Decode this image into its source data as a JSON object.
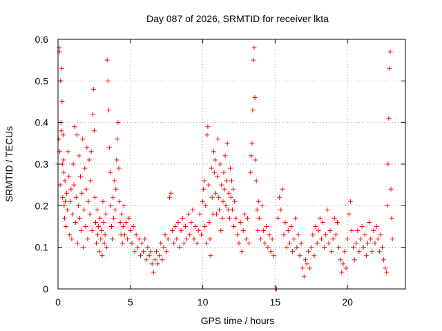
{
  "chart_data": {
    "type": "scatter",
    "title": "Day 087 of 2026, SRMTID for receiver lkta",
    "xlabel": "GPS time / hours",
    "ylabel": "SRMTID / TECUs",
    "xlim": [
      0,
      24
    ],
    "ylim": [
      0,
      0.6
    ],
    "x_ticks": [
      0,
      5,
      10,
      15,
      20
    ],
    "x_tick_labels": [
      "0",
      "5",
      "10",
      "15",
      "20"
    ],
    "y_ticks": [
      0,
      0.1,
      0.2,
      0.3,
      0.4,
      0.5,
      0.6
    ],
    "y_tick_labels": [
      "0",
      "0.1",
      "0.2",
      "0.3",
      "0.4",
      "0.5",
      "0.6"
    ],
    "grid": true,
    "marker": "+",
    "series_color": "#ff0000",
    "series": [
      {
        "name": "SRMTID",
        "points": [
          [
            0.0,
            0.3
          ],
          [
            0.05,
            0.36
          ],
          [
            0.08,
            0.58
          ],
          [
            0.1,
            0.57
          ],
          [
            0.12,
            0.33
          ],
          [
            0.15,
            0.25
          ],
          [
            0.18,
            0.5
          ],
          [
            0.2,
            0.4
          ],
          [
            0.22,
            0.38
          ],
          [
            0.25,
            0.53
          ],
          [
            0.28,
            0.45
          ],
          [
            0.3,
            0.3
          ],
          [
            0.32,
            0.22
          ],
          [
            0.35,
            0.37
          ],
          [
            0.38,
            0.31
          ],
          [
            0.4,
            0.28
          ],
          [
            0.42,
            0.2
          ],
          [
            0.45,
            0.17
          ],
          [
            0.48,
            0.26
          ],
          [
            0.5,
            0.21
          ],
          [
            0.55,
            0.15
          ],
          [
            0.6,
            0.23
          ],
          [
            0.65,
            0.19
          ],
          [
            0.7,
            0.33
          ],
          [
            0.75,
            0.27
          ],
          [
            0.8,
            0.13
          ],
          [
            0.85,
            0.21
          ],
          [
            0.9,
            0.24
          ],
          [
            0.95,
            0.12
          ],
          [
            1.0,
            0.18
          ],
          [
            1.05,
            0.3
          ],
          [
            1.1,
            0.25
          ],
          [
            1.15,
            0.39
          ],
          [
            1.2,
            0.16
          ],
          [
            1.25,
            0.22
          ],
          [
            1.3,
            0.37
          ],
          [
            1.35,
            0.11
          ],
          [
            1.4,
            0.2
          ],
          [
            1.45,
            0.32
          ],
          [
            1.5,
            0.17
          ],
          [
            1.55,
            0.27
          ],
          [
            1.6,
            0.14
          ],
          [
            1.65,
            0.23
          ],
          [
            1.7,
            0.36
          ],
          [
            1.75,
            0.1
          ],
          [
            1.8,
            0.19
          ],
          [
            1.85,
            0.29
          ],
          [
            1.9,
            0.15
          ],
          [
            1.95,
            0.24
          ],
          [
            2.0,
            0.34
          ],
          [
            2.05,
            0.12
          ],
          [
            2.1,
            0.21
          ],
          [
            2.15,
            0.31
          ],
          [
            2.2,
            0.18
          ],
          [
            2.25,
            0.26
          ],
          [
            2.3,
            0.33
          ],
          [
            2.35,
            0.14
          ],
          [
            2.4,
            0.42
          ],
          [
            2.45,
            0.48
          ],
          [
            2.5,
            0.38
          ],
          [
            2.55,
            0.22
          ],
          [
            2.6,
            0.16
          ],
          [
            2.65,
            0.11
          ],
          [
            2.7,
            0.19
          ],
          [
            2.75,
            0.13
          ],
          [
            2.8,
            0.15
          ],
          [
            2.85,
            0.09
          ],
          [
            2.9,
            0.17
          ],
          [
            2.95,
            0.12
          ],
          [
            3.0,
            0.14
          ],
          [
            3.05,
            0.08
          ],
          [
            3.1,
            0.21
          ],
          [
            3.15,
            0.16
          ],
          [
            3.2,
            0.11
          ],
          [
            3.25,
            0.13
          ],
          [
            3.3,
            0.18
          ],
          [
            3.35,
            0.1
          ],
          [
            3.4,
            0.55
          ],
          [
            3.45,
            0.5
          ],
          [
            3.5,
            0.43
          ],
          [
            3.55,
            0.34
          ],
          [
            3.6,
            0.28
          ],
          [
            3.65,
            0.2
          ],
          [
            3.7,
            0.15
          ],
          [
            3.75,
            0.12
          ],
          [
            3.8,
            0.22
          ],
          [
            3.85,
            0.17
          ],
          [
            3.9,
            0.26
          ],
          [
            3.95,
            0.19
          ],
          [
            4.0,
            0.24
          ],
          [
            4.05,
            0.31
          ],
          [
            4.1,
            0.36
          ],
          [
            4.15,
            0.4
          ],
          [
            4.2,
            0.29
          ],
          [
            4.25,
            0.21
          ],
          [
            4.3,
            0.16
          ],
          [
            4.35,
            0.13
          ],
          [
            4.4,
            0.18
          ],
          [
            4.45,
            0.11
          ],
          [
            4.5,
            0.15
          ],
          [
            4.55,
            0.2
          ],
          [
            4.6,
            0.13
          ],
          [
            4.7,
            0.16
          ],
          [
            4.8,
            0.12
          ],
          [
            4.9,
            0.17
          ],
          [
            5.0,
            0.14
          ],
          [
            5.1,
            0.11
          ],
          [
            5.2,
            0.15
          ],
          [
            5.3,
            0.09
          ],
          [
            5.4,
            0.13
          ],
          [
            5.5,
            0.1
          ],
          [
            5.6,
            0.12
          ],
          [
            5.7,
            0.08
          ],
          [
            5.8,
            0.11
          ],
          [
            5.9,
            0.09
          ],
          [
            6.0,
            0.12
          ],
          [
            6.1,
            0.07
          ],
          [
            6.2,
            0.1
          ],
          [
            6.3,
            0.08
          ],
          [
            6.4,
            0.09
          ],
          [
            6.5,
            0.06
          ],
          [
            6.6,
            0.04
          ],
          [
            6.7,
            0.07
          ],
          [
            6.8,
            0.09
          ],
          [
            6.9,
            0.06
          ],
          [
            7.0,
            0.08
          ],
          [
            7.1,
            0.11
          ],
          [
            7.2,
            0.07
          ],
          [
            7.3,
            0.1
          ],
          [
            7.4,
            0.13
          ],
          [
            7.5,
            0.09
          ],
          [
            7.6,
            0.12
          ],
          [
            7.7,
            0.22
          ],
          [
            7.8,
            0.23
          ],
          [
            7.9,
            0.14
          ],
          [
            8.0,
            0.11
          ],
          [
            8.1,
            0.15
          ],
          [
            8.2,
            0.12
          ],
          [
            8.3,
            0.16
          ],
          [
            8.4,
            0.1
          ],
          [
            8.5,
            0.14
          ],
          [
            8.6,
            0.17
          ],
          [
            8.7,
            0.11
          ],
          [
            8.8,
            0.15
          ],
          [
            8.9,
            0.12
          ],
          [
            9.0,
            0.18
          ],
          [
            9.1,
            0.13
          ],
          [
            9.2,
            0.16
          ],
          [
            9.3,
            0.19
          ],
          [
            9.4,
            0.12
          ],
          [
            9.5,
            0.15
          ],
          [
            9.6,
            0.11
          ],
          [
            9.7,
            0.14
          ],
          [
            9.8,
            0.18
          ],
          [
            9.9,
            0.13
          ],
          [
            10.0,
            0.21
          ],
          [
            10.05,
            0.24
          ],
          [
            10.1,
            0.26
          ],
          [
            10.15,
            0.15
          ],
          [
            10.2,
            0.2
          ],
          [
            10.25,
            0.11
          ],
          [
            10.3,
            0.37
          ],
          [
            10.35,
            0.39
          ],
          [
            10.4,
            0.25
          ],
          [
            10.45,
            0.16
          ],
          [
            10.5,
            0.12
          ],
          [
            10.55,
            0.08
          ],
          [
            10.6,
            0.29
          ],
          [
            10.65,
            0.22
          ],
          [
            10.7,
            0.18
          ],
          [
            10.75,
            0.33
          ],
          [
            10.8,
            0.28
          ],
          [
            10.85,
            0.31
          ],
          [
            10.9,
            0.23
          ],
          [
            10.95,
            0.18
          ],
          [
            11.0,
            0.27
          ],
          [
            11.05,
            0.36
          ],
          [
            11.1,
            0.22
          ],
          [
            11.15,
            0.19
          ],
          [
            11.2,
            0.3
          ],
          [
            11.25,
            0.14
          ],
          [
            11.3,
            0.25
          ],
          [
            11.35,
            0.17
          ],
          [
            11.4,
            0.21
          ],
          [
            11.45,
            0.28
          ],
          [
            11.5,
            0.24
          ],
          [
            11.55,
            0.32
          ],
          [
            11.6,
            0.2
          ],
          [
            11.65,
            0.26
          ],
          [
            11.7,
            0.35
          ],
          [
            11.75,
            0.19
          ],
          [
            11.8,
            0.23
          ],
          [
            11.85,
            0.17
          ],
          [
            11.9,
            0.29
          ],
          [
            11.95,
            0.22
          ],
          [
            12.0,
            0.26
          ],
          [
            12.05,
            0.19
          ],
          [
            12.1,
            0.24
          ],
          [
            12.15,
            0.15
          ],
          [
            12.2,
            0.21
          ],
          [
            12.3,
            0.17
          ],
          [
            12.4,
            0.13
          ],
          [
            12.5,
            0.11
          ],
          [
            12.6,
            0.16
          ],
          [
            12.7,
            0.09
          ],
          [
            12.8,
            0.14
          ],
          [
            12.9,
            0.18
          ],
          [
            13.0,
            0.12
          ],
          [
            13.1,
            0.17
          ],
          [
            13.2,
            0.11
          ],
          [
            13.3,
            0.28
          ],
          [
            13.35,
            0.32
          ],
          [
            13.4,
            0.35
          ],
          [
            13.45,
            0.43
          ],
          [
            13.5,
            0.55
          ],
          [
            13.55,
            0.58
          ],
          [
            13.6,
            0.46
          ],
          [
            13.65,
            0.31
          ],
          [
            13.7,
            0.26
          ],
          [
            13.75,
            0.19
          ],
          [
            13.8,
            0.14
          ],
          [
            13.85,
            0.21
          ],
          [
            13.9,
            0.17
          ],
          [
            14.0,
            0.12
          ],
          [
            14.1,
            0.2
          ],
          [
            14.2,
            0.14
          ],
          [
            14.3,
            0.11
          ],
          [
            14.4,
            0.15
          ],
          [
            14.5,
            0.1
          ],
          [
            14.6,
            0.13
          ],
          [
            14.7,
            0.09
          ],
          [
            14.8,
            0.12
          ],
          [
            14.9,
            0.08
          ],
          [
            15.0,
            0.0
          ],
          [
            15.1,
            0.0
          ],
          [
            15.2,
            0.17
          ],
          [
            15.3,
            0.22
          ],
          [
            15.4,
            0.19
          ],
          [
            15.5,
            0.24
          ],
          [
            15.6,
            0.13
          ],
          [
            15.7,
            0.16
          ],
          [
            15.8,
            0.1
          ],
          [
            15.9,
            0.14
          ],
          [
            16.0,
            0.11
          ],
          [
            16.1,
            0.15
          ],
          [
            16.2,
            0.09
          ],
          [
            16.3,
            0.12
          ],
          [
            16.4,
            0.17
          ],
          [
            16.5,
            0.1
          ],
          [
            16.6,
            0.13
          ],
          [
            16.7,
            0.08
          ],
          [
            16.8,
            0.11
          ],
          [
            16.9,
            0.05
          ],
          [
            17.0,
            0.03
          ],
          [
            17.1,
            0.07
          ],
          [
            17.2,
            0.06
          ],
          [
            17.3,
            0.09
          ],
          [
            17.4,
            0.05
          ],
          [
            17.5,
            0.1
          ],
          [
            17.6,
            0.13
          ],
          [
            17.7,
            0.08
          ],
          [
            17.8,
            0.15
          ],
          [
            17.9,
            0.11
          ],
          [
            18.0,
            0.14
          ],
          [
            18.1,
            0.17
          ],
          [
            18.2,
            0.12
          ],
          [
            18.3,
            0.16
          ],
          [
            18.4,
            0.1
          ],
          [
            18.5,
            0.13
          ],
          [
            18.6,
            0.19
          ],
          [
            18.7,
            0.11
          ],
          [
            18.8,
            0.14
          ],
          [
            18.9,
            0.09
          ],
          [
            19.0,
            0.12
          ],
          [
            19.1,
            0.17
          ],
          [
            19.2,
            0.13
          ],
          [
            19.3,
            0.16
          ],
          [
            19.4,
            0.1
          ],
          [
            19.5,
            0.07
          ],
          [
            19.6,
            0.04
          ],
          [
            19.7,
            0.06
          ],
          [
            19.8,
            0.09
          ],
          [
            19.9,
            0.05
          ],
          [
            20.0,
            0.12
          ],
          [
            20.1,
            0.18
          ],
          [
            20.2,
            0.21
          ],
          [
            20.3,
            0.14
          ],
          [
            20.4,
            0.1
          ],
          [
            20.5,
            0.07
          ],
          [
            20.6,
            0.11
          ],
          [
            20.7,
            0.14
          ],
          [
            20.8,
            0.09
          ],
          [
            20.9,
            0.12
          ],
          [
            21.0,
            0.15
          ],
          [
            21.1,
            0.1
          ],
          [
            21.2,
            0.13
          ],
          [
            21.3,
            0.08
          ],
          [
            21.4,
            0.11
          ],
          [
            21.5,
            0.16
          ],
          [
            21.6,
            0.12
          ],
          [
            21.7,
            0.09
          ],
          [
            21.8,
            0.14
          ],
          [
            21.9,
            0.11
          ],
          [
            22.0,
            0.15
          ],
          [
            22.1,
            0.12
          ],
          [
            22.2,
            0.09
          ],
          [
            22.3,
            0.13
          ],
          [
            22.4,
            0.1
          ],
          [
            22.5,
            0.07
          ],
          [
            22.6,
            0.05
          ],
          [
            22.7,
            0.04
          ],
          [
            22.75,
            0.2
          ],
          [
            22.8,
            0.3
          ],
          [
            22.85,
            0.41
          ],
          [
            22.9,
            0.53
          ],
          [
            22.95,
            0.57
          ],
          [
            23.0,
            0.24
          ],
          [
            23.05,
            0.17
          ],
          [
            23.1,
            0.12
          ]
        ]
      }
    ]
  }
}
